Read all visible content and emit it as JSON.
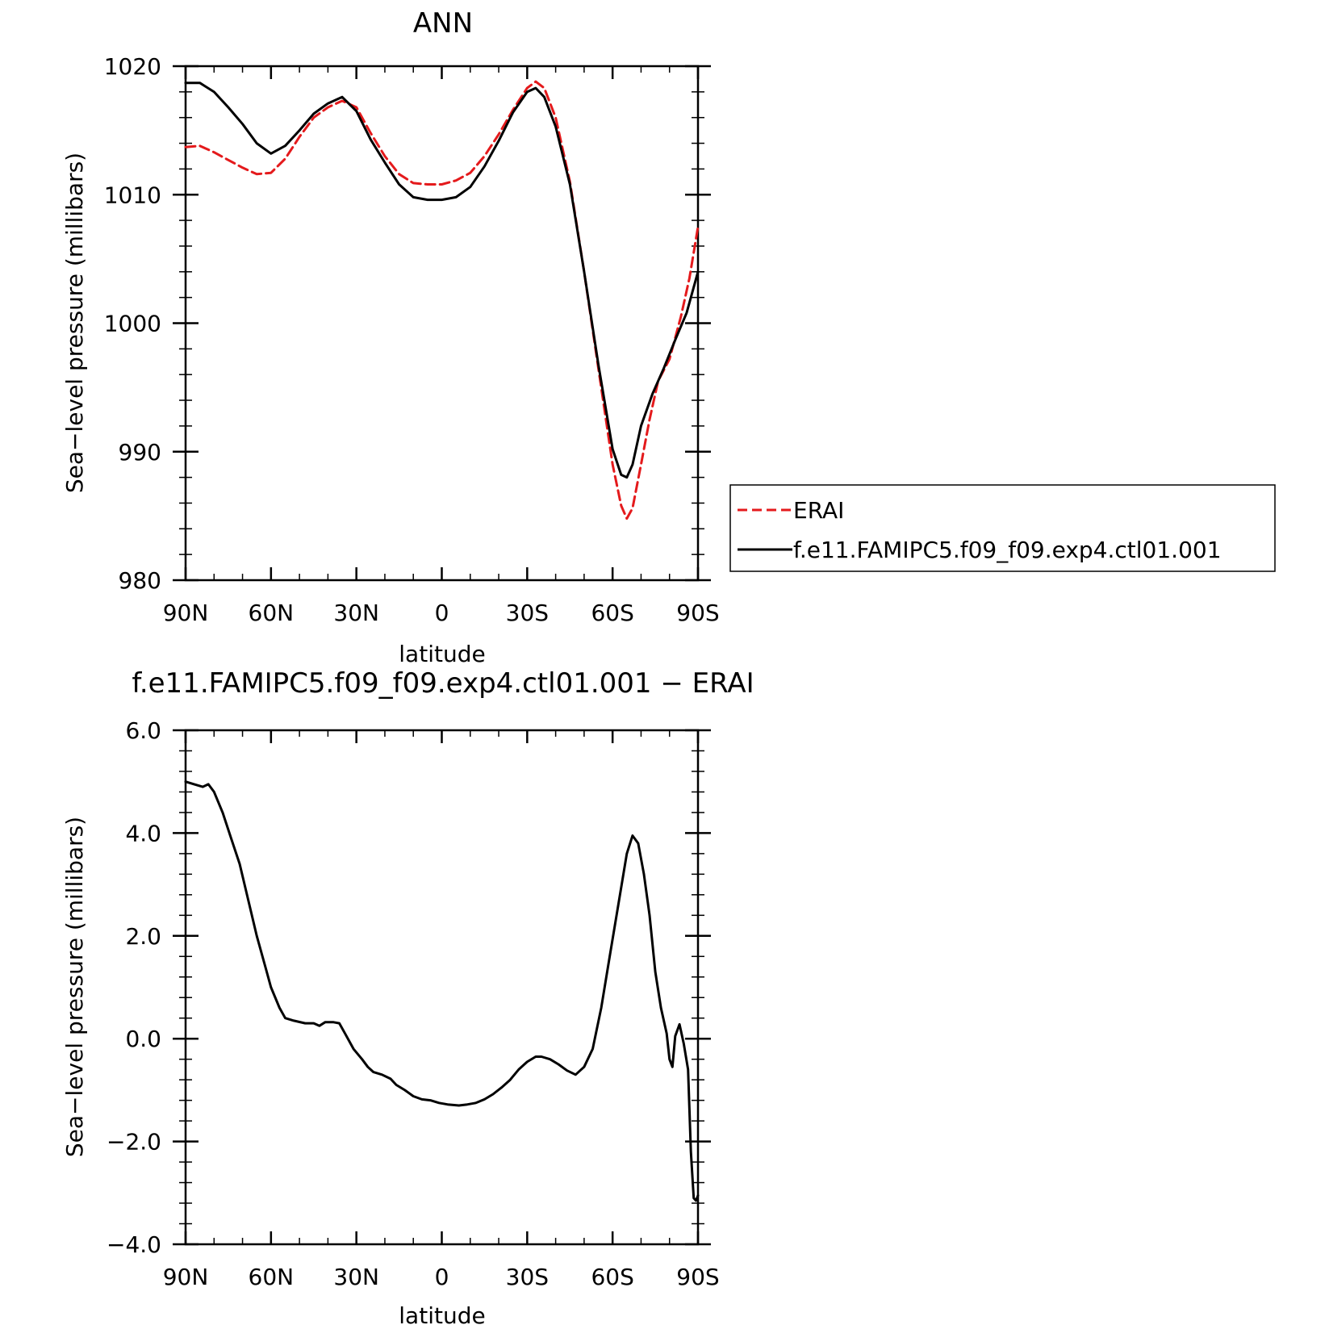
{
  "chart_data": [
    {
      "type": "line",
      "title": "ANN",
      "xlabel": "latitude",
      "ylabel": "Sea−level pressure (millibars)",
      "xlim": [
        90,
        -90
      ],
      "ylim": [
        980,
        1020
      ],
      "x_ticks": [
        90,
        60,
        30,
        0,
        -30,
        -60,
        -90
      ],
      "x_tick_labels": [
        "90N",
        "60N",
        "30N",
        "0",
        "30S",
        "60S",
        "90S"
      ],
      "y_ticks": [
        980,
        990,
        1000,
        1010,
        1020
      ],
      "y_tick_labels": [
        "980",
        "990",
        "1000",
        "1010",
        "1020"
      ],
      "legend_position": "right",
      "series": [
        {
          "name": "ERAI",
          "color": "#e41a1c",
          "style": "dashed",
          "points": [
            [
              90,
              1013.7
            ],
            [
              85,
              1013.8
            ],
            [
              80,
              1013.3
            ],
            [
              75,
              1012.7
            ],
            [
              70,
              1012.1
            ],
            [
              65,
              1011.6
            ],
            [
              60,
              1011.7
            ],
            [
              55,
              1012.8
            ],
            [
              50,
              1014.5
            ],
            [
              45,
              1016.0
            ],
            [
              40,
              1016.8
            ],
            [
              35,
              1017.3
            ],
            [
              30,
              1016.8
            ],
            [
              25,
              1014.8
            ],
            [
              20,
              1013.0
            ],
            [
              15,
              1011.6
            ],
            [
              10,
              1010.9
            ],
            [
              5,
              1010.8
            ],
            [
              0,
              1010.8
            ],
            [
              -5,
              1011.1
            ],
            [
              -10,
              1011.7
            ],
            [
              -15,
              1013.0
            ],
            [
              -20,
              1014.7
            ],
            [
              -25,
              1016.6
            ],
            [
              -30,
              1018.3
            ],
            [
              -33,
              1018.8
            ],
            [
              -36,
              1018.3
            ],
            [
              -40,
              1016.0
            ],
            [
              -45,
              1011.0
            ],
            [
              -50,
              1004.0
            ],
            [
              -55,
              996.5
            ],
            [
              -60,
              989.0
            ],
            [
              -63,
              985.8
            ],
            [
              -65,
              984.8
            ],
            [
              -67,
              985.6
            ],
            [
              -70,
              989.0
            ],
            [
              -73,
              992.5
            ],
            [
              -76,
              995.5
            ],
            [
              -80,
              997.2
            ],
            [
              -84,
              1000.5
            ],
            [
              -87,
              1003.5
            ],
            [
              -90,
              1007.5
            ]
          ]
        },
        {
          "name": "f.e11.FAMIPC5.f09_f09.exp4.ctl01.001",
          "color": "#000000",
          "style": "solid",
          "points": [
            [
              90,
              1018.7
            ],
            [
              85,
              1018.7
            ],
            [
              80,
              1018.0
            ],
            [
              75,
              1016.8
            ],
            [
              70,
              1015.5
            ],
            [
              65,
              1014.0
            ],
            [
              60,
              1013.2
            ],
            [
              55,
              1013.8
            ],
            [
              50,
              1015.0
            ],
            [
              45,
              1016.3
            ],
            [
              40,
              1017.1
            ],
            [
              35,
              1017.6
            ],
            [
              30,
              1016.5
            ],
            [
              25,
              1014.3
            ],
            [
              20,
              1012.5
            ],
            [
              15,
              1010.8
            ],
            [
              10,
              1009.8
            ],
            [
              5,
              1009.6
            ],
            [
              0,
              1009.6
            ],
            [
              -5,
              1009.8
            ],
            [
              -10,
              1010.6
            ],
            [
              -15,
              1012.2
            ],
            [
              -20,
              1014.2
            ],
            [
              -25,
              1016.4
            ],
            [
              -30,
              1018.0
            ],
            [
              -33,
              1018.3
            ],
            [
              -36,
              1017.6
            ],
            [
              -40,
              1015.3
            ],
            [
              -45,
              1010.8
            ],
            [
              -50,
              1004.0
            ],
            [
              -55,
              996.8
            ],
            [
              -60,
              990.2
            ],
            [
              -63,
              988.2
            ],
            [
              -65,
              988.0
            ],
            [
              -67,
              989.0
            ],
            [
              -70,
              992.0
            ],
            [
              -74,
              994.5
            ],
            [
              -78,
              996.5
            ],
            [
              -82,
              998.7
            ],
            [
              -86,
              1000.8
            ],
            [
              -90,
              1004.0
            ]
          ]
        }
      ]
    },
    {
      "type": "line",
      "title": "f.e11.FAMIPC5.f09_f09.exp4.ctl01.001  −  ERAI",
      "xlabel": "latitude",
      "ylabel": "Sea−level pressure (millibars)",
      "xlim": [
        90,
        -90
      ],
      "ylim": [
        -4,
        6
      ],
      "x_ticks": [
        90,
        60,
        30,
        0,
        -30,
        -60,
        -90
      ],
      "x_tick_labels": [
        "90N",
        "60N",
        "30N",
        "0",
        "30S",
        "60S",
        "90S"
      ],
      "y_ticks": [
        -4,
        -2,
        0,
        2,
        4,
        6
      ],
      "y_tick_labels": [
        "−4.0",
        "−2.0",
        "0.0",
        "2.0",
        "4.0",
        "6.0"
      ],
      "series": [
        {
          "name": "",
          "color": "#000000",
          "style": "solid",
          "points": [
            [
              90,
              5.0
            ],
            [
              87,
              4.95
            ],
            [
              84,
              4.9
            ],
            [
              82,
              4.95
            ],
            [
              80,
              4.8
            ],
            [
              77,
              4.4
            ],
            [
              74,
              3.9
            ],
            [
              71,
              3.4
            ],
            [
              68,
              2.7
            ],
            [
              65,
              2.0
            ],
            [
              62,
              1.4
            ],
            [
              60,
              1.0
            ],
            [
              57,
              0.6
            ],
            [
              55,
              0.4
            ],
            [
              52,
              0.35
            ],
            [
              48,
              0.3
            ],
            [
              45,
              0.3
            ],
            [
              43,
              0.25
            ],
            [
              41,
              0.32
            ],
            [
              38,
              0.32
            ],
            [
              36,
              0.3
            ],
            [
              34,
              0.1
            ],
            [
              31,
              -0.2
            ],
            [
              28,
              -0.4
            ],
            [
              26,
              -0.55
            ],
            [
              24,
              -0.65
            ],
            [
              21,
              -0.7
            ],
            [
              18,
              -0.78
            ],
            [
              16,
              -0.9
            ],
            [
              13,
              -1.0
            ],
            [
              10,
              -1.12
            ],
            [
              7,
              -1.18
            ],
            [
              4,
              -1.2
            ],
            [
              1,
              -1.25
            ],
            [
              -2,
              -1.28
            ],
            [
              -6,
              -1.3
            ],
            [
              -9,
              -1.28
            ],
            [
              -12,
              -1.25
            ],
            [
              -15,
              -1.18
            ],
            [
              -18,
              -1.08
            ],
            [
              -21,
              -0.95
            ],
            [
              -24,
              -0.8
            ],
            [
              -27,
              -0.6
            ],
            [
              -30,
              -0.45
            ],
            [
              -33,
              -0.35
            ],
            [
              -35,
              -0.35
            ],
            [
              -38,
              -0.4
            ],
            [
              -41,
              -0.5
            ],
            [
              -44,
              -0.62
            ],
            [
              -47,
              -0.7
            ],
            [
              -50,
              -0.55
            ],
            [
              -53,
              -0.2
            ],
            [
              -56,
              0.6
            ],
            [
              -59,
              1.6
            ],
            [
              -62,
              2.6
            ],
            [
              -65,
              3.6
            ],
            [
              -67,
              3.95
            ],
            [
              -69,
              3.8
            ],
            [
              -71,
              3.2
            ],
            [
              -73,
              2.4
            ],
            [
              -75,
              1.3
            ],
            [
              -77,
              0.6
            ],
            [
              -79,
              0.1
            ],
            [
              -80,
              -0.4
            ],
            [
              -81,
              -0.55
            ],
            [
              -82,
              0.05
            ],
            [
              -83.5,
              0.28
            ],
            [
              -85,
              -0.1
            ],
            [
              -86.5,
              -0.6
            ],
            [
              -87.5,
              -2.2
            ],
            [
              -88.5,
              -3.1
            ],
            [
              -89.3,
              -3.15
            ],
            [
              -90,
              -3.05
            ]
          ]
        }
      ]
    }
  ]
}
